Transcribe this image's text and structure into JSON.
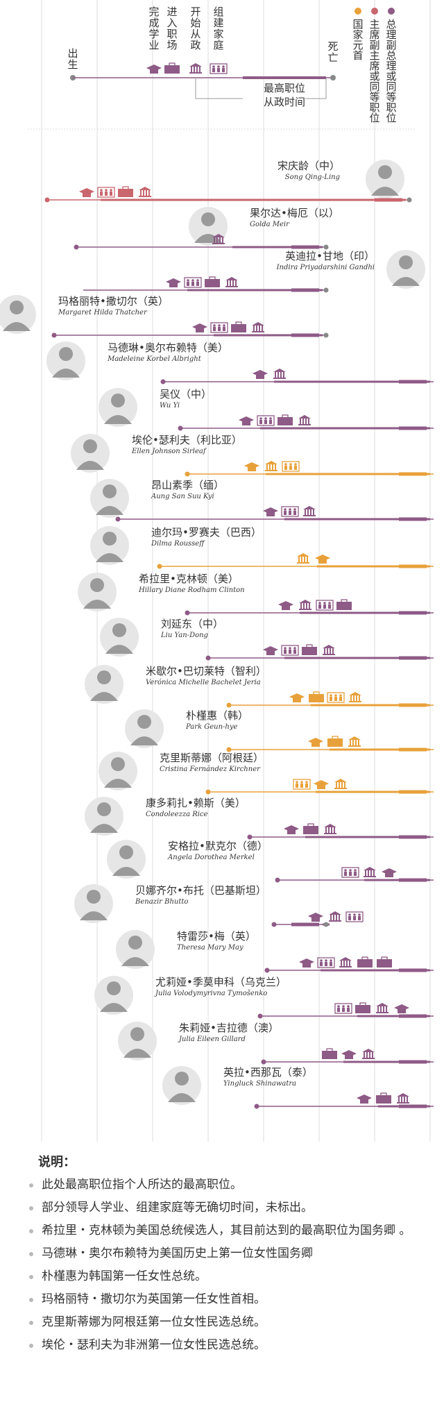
{
  "legend": {
    "stages": [
      "完成学业",
      "进入职场",
      "开始从政",
      "组建家庭"
    ],
    "birth": "出生",
    "death": "死亡",
    "highest_post": "最高职位",
    "political_time": "从政时间",
    "roles": [
      {
        "label": "国家元首",
        "color": "#e8a13a"
      },
      {
        "label": "主席、副主席或同等职位",
        "color": "#c9666e"
      },
      {
        "label": "总理、副总理或同等职位",
        "color": "#8e5a86"
      }
    ]
  },
  "colors": {
    "purple": "#8e5a86",
    "orange": "#e8a13a",
    "red": "#c9666e",
    "grid": "#d4d4d4",
    "line": "#888888"
  },
  "rows": [
    {
      "cn": "宋庆龄（中）",
      "en": "Song Qing-Ling",
      "color": "red",
      "birth": true,
      "death": true,
      "icons": [
        "edu",
        "fam",
        "work",
        "gov"
      ]
    },
    {
      "cn": "果尔达•梅厄（以）",
      "en": "Golda Meir",
      "color": "purple",
      "birth": true,
      "death": true,
      "icons": [
        "gov"
      ]
    },
    {
      "cn": "英迪拉•甘地（印）",
      "en": "Indira Priyadarshini Gandhi",
      "color": "purple",
      "birth": false,
      "death": true,
      "icons": [
        "edu",
        "fam",
        "work",
        "gov"
      ]
    },
    {
      "cn": "玛格丽特•撒切尔（英）",
      "en": "Margaret Hilda Thatcher",
      "color": "purple",
      "birth": true,
      "death": true,
      "icons": [
        "edu",
        "fam",
        "work",
        "gov"
      ]
    },
    {
      "cn": "马德琳•奥尔布赖特（美）",
      "en": "Madeleine Korbel Albright",
      "color": "purple",
      "birth": true,
      "death": false,
      "icons": [
        "edu",
        "gov"
      ]
    },
    {
      "cn": "吴仪（中）",
      "en": "Wu Yi",
      "color": "purple",
      "birth": true,
      "death": false,
      "icons": [
        "edu",
        "fam",
        "work",
        "gov"
      ]
    },
    {
      "cn": "埃伦•瑟利夫（利比亚）",
      "en": "Ellen Johnson Sirleaf",
      "color": "orange",
      "birth": true,
      "death": false,
      "icons": [
        "edu",
        "gov",
        "fam"
      ]
    },
    {
      "cn": "昂山素季（缅）",
      "en": "Aung San Suu Kyi",
      "color": "purple",
      "birth": true,
      "death": false,
      "icons": [
        "edu",
        "fam",
        "gov"
      ]
    },
    {
      "cn": "迪尔玛•罗赛夫（巴西）",
      "en": "Dilma Rousseff",
      "color": "orange",
      "birth": true,
      "death": false,
      "icons": [
        "gov",
        "edu"
      ]
    },
    {
      "cn": "希拉里•克林顿（美）",
      "en": "Hillary Diane Rodham Clinton",
      "color": "purple",
      "birth": true,
      "death": false,
      "icons": [
        "edu",
        "gov",
        "fam",
        "work"
      ]
    },
    {
      "cn": "刘延东（中）",
      "en": "Liu Yan-Dong",
      "color": "purple",
      "birth": true,
      "death": false,
      "icons": [
        "edu",
        "fam",
        "work",
        "gov"
      ]
    },
    {
      "cn": "米歇尔•巴切莱特（智利）",
      "en": "Verónica Michelle Bachelet Jeria",
      "color": "orange",
      "birth": true,
      "death": false,
      "icons": [
        "edu",
        "work",
        "fam",
        "gov"
      ]
    },
    {
      "cn": "朴槿惠（韩）",
      "en": "Park Geun-hye",
      "color": "orange",
      "birth": true,
      "death": false,
      "icons": [
        "edu",
        "work",
        "gov"
      ]
    },
    {
      "cn": "克里斯蒂娜（阿根廷）",
      "en": "Cristina Fernández Kirchner",
      "color": "orange",
      "birth": true,
      "death": false,
      "icons": [
        "fam",
        "edu",
        "gov"
      ]
    },
    {
      "cn": "康多莉扎•赖斯（美）",
      "en": "Condoleezza Rice",
      "color": "purple",
      "birth": true,
      "death": false,
      "icons": [
        "edu",
        "work",
        "gov"
      ]
    },
    {
      "cn": "安格拉•默克尔（德）",
      "en": "Angela Dorothea Merkel",
      "color": "purple",
      "birth": true,
      "death": false,
      "icons": [
        "fam",
        "gov",
        "edu"
      ]
    },
    {
      "cn": "贝娜齐尔•布托（巴基斯坦）",
      "en": "Benazir Bhutto",
      "color": "purple",
      "birth": true,
      "death": true,
      "icons": [
        "edu",
        "gov",
        "fam"
      ]
    },
    {
      "cn": "特雷莎•梅（英）",
      "en": "Theresa Mary May",
      "color": "purple",
      "birth": true,
      "death": false,
      "icons": [
        "edu",
        "fam",
        "gov",
        "work",
        "work"
      ]
    },
    {
      "cn": "尤莉娅•季莫申科（乌克兰）",
      "en": "Julia Volodymyrivna Tymošenko",
      "color": "purple",
      "birth": true,
      "death": false,
      "icons": [
        "fam",
        "work",
        "gov",
        "edu"
      ]
    },
    {
      "cn": "朱莉娅•吉拉德（澳）",
      "en": "Julia Eileen Gillard",
      "color": "purple",
      "birth": true,
      "death": false,
      "icons": [
        "work",
        "edu",
        "gov"
      ]
    },
    {
      "cn": "英拉•西那瓦（泰）",
      "en": "Yingluck Shinawatra",
      "color": "purple",
      "birth": true,
      "death": false,
      "icons": [
        "edu",
        "work",
        "gov"
      ]
    }
  ],
  "notes": {
    "title": "说明：",
    "items": [
      "此处最高职位指个人所达的最高职位。",
      "部分领导人学业、组建家庭等无确切时间，未标出。",
      "希拉里・克林顿为美国总统候选人，其目前达到的最高职位为国务卿 。",
      "马德琳・奥尔布赖特为美国历史上第一位女性国务卿",
      "朴槿惠为韩国第一任女性总统。",
      "玛格丽特・撒切尔为英国第一任女性首相。",
      "克里斯蒂娜为阿根廷第一位女性民选总统。",
      "埃伦・瑟利夫为非洲第一位女性民选总统。"
    ]
  }
}
